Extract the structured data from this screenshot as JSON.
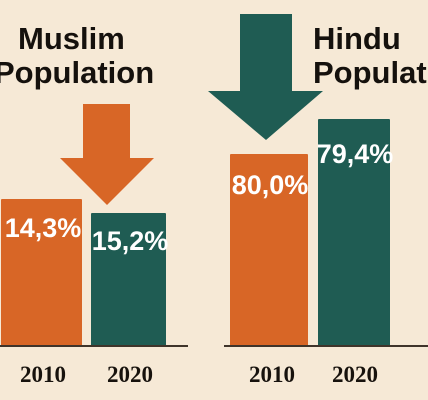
{
  "chart_data": [
    {
      "type": "bar",
      "title": "Muslim\nPopulation",
      "categories": [
        "2010",
        "2020"
      ],
      "values": [
        14.3,
        15.2
      ],
      "value_labels": [
        "14,3%",
        "15,2%"
      ],
      "bar_colors": [
        "#d86626",
        "#1f5c53"
      ],
      "arrow": {
        "direction": "down",
        "color": "#d86626"
      }
    },
    {
      "type": "bar",
      "title": "Hindu\nPopulation",
      "categories": [
        "2010",
        "2020"
      ],
      "values": [
        80.0,
        79.4
      ],
      "value_labels": [
        "80,0%",
        "79,4%"
      ],
      "bar_colors": [
        "#d86626",
        "#1f5c53"
      ],
      "arrow": {
        "direction": "down",
        "color": "#1f5c53"
      }
    }
  ],
  "colors": {
    "background": "#f6e9d6",
    "baseline": "#3f342a",
    "orange": "#d86626",
    "teal": "#1f5c53",
    "text": "#15110d"
  }
}
